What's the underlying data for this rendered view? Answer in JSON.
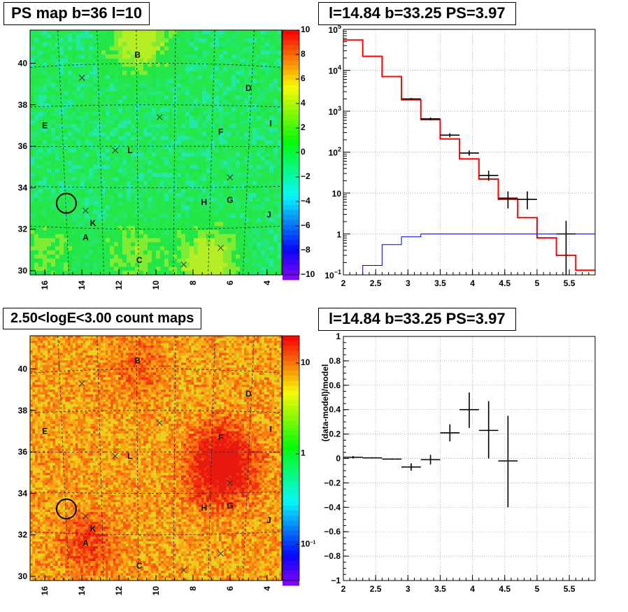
{
  "panels": {
    "ps_map": {
      "title": "PS map b=36 l=10",
      "x_ticks": [
        "16",
        "14",
        "12",
        "10",
        "8",
        "6",
        "4"
      ],
      "y_ticks": [
        "40",
        "38",
        "36",
        "34",
        "32",
        "30"
      ],
      "colorbar_ticks": [
        "10",
        "8",
        "6",
        "4",
        "2",
        "0",
        "−2",
        "−4",
        "−6",
        "−8",
        "−10"
      ],
      "source_labels": [
        "B",
        "D",
        "E",
        "F",
        "I",
        "L",
        "H",
        "G",
        "J",
        "K",
        "A",
        "C"
      ]
    },
    "spectrum": {
      "title": "l=14.84 b=33.25 PS=3.97",
      "x_ticks": [
        "2",
        "2.5",
        "3",
        "3.5",
        "4",
        "4.5",
        "5",
        "5.5"
      ],
      "y_ticks": [
        "10^5",
        "10^4",
        "10^3",
        "10^2",
        "10",
        "1",
        "10^-1"
      ]
    },
    "count_map": {
      "title": "2.50<logE<3.00 count maps",
      "x_ticks": [
        "16",
        "14",
        "12",
        "10",
        "8",
        "6",
        "4"
      ],
      "y_ticks": [
        "40",
        "38",
        "36",
        "34",
        "32",
        "30"
      ],
      "colorbar_ticks": [
        "10",
        "1",
        "10^-1"
      ],
      "source_labels": [
        "B",
        "D",
        "E",
        "F",
        "I",
        "L",
        "H",
        "G",
        "J",
        "K",
        "A",
        "C"
      ]
    },
    "residual": {
      "title": "l=14.84 b=33.25 PS=3.97",
      "ylabel": "(data-model)/model",
      "x_ticks": [
        "2",
        "2.5",
        "3",
        "3.5",
        "4",
        "4.5",
        "5",
        "5.5"
      ],
      "y_ticks": [
        "1",
        "0.8",
        "0.6",
        "0.4",
        "0.2",
        "0",
        "−0.2",
        "−0.4",
        "−0.6",
        "−0.8",
        "−1"
      ]
    }
  },
  "colors": {
    "model_line": "#ff0000",
    "background_line": "#0000cc",
    "data_points": "#000000",
    "ps_map_base": "#22e84a",
    "count_map_base": "#f26a10"
  },
  "chart_data": [
    {
      "type": "heatmap",
      "title": "PS map b=36 l=10",
      "xlim": [
        16.8,
        3.2
      ],
      "ylim": [
        29.8,
        41.6
      ],
      "zlim": [
        -10,
        10
      ],
      "sources": [
        {
          "label": "B",
          "l": 11.0,
          "b": 40.4
        },
        {
          "label": "D",
          "l": 5.0,
          "b": 38.8
        },
        {
          "label": "E",
          "l": 16.0,
          "b": 37.0
        },
        {
          "label": "F",
          "l": 6.5,
          "b": 36.7
        },
        {
          "label": "I",
          "l": 3.8,
          "b": 37.1
        },
        {
          "label": "L",
          "l": 11.4,
          "b": 35.8
        },
        {
          "label": "H",
          "l": 7.4,
          "b": 33.3
        },
        {
          "label": "G",
          "l": 6.0,
          "b": 33.4
        },
        {
          "label": "J",
          "l": 3.9,
          "b": 32.7
        },
        {
          "label": "K",
          "l": 13.4,
          "b": 32.3
        },
        {
          "label": "A",
          "l": 13.8,
          "b": 31.6
        },
        {
          "label": "C",
          "l": 10.9,
          "b": 30.5
        }
      ],
      "crosses": [
        {
          "l": 14.0,
          "b": 39.3
        },
        {
          "l": 9.8,
          "b": 37.4
        },
        {
          "l": 12.2,
          "b": 35.8
        },
        {
          "l": 6.0,
          "b": 34.5
        },
        {
          "l": 13.8,
          "b": 32.9
        },
        {
          "l": 6.5,
          "b": 31.1
        },
        {
          "l": 8.5,
          "b": 30.3
        }
      ],
      "circle": {
        "l": 14.84,
        "b": 33.25
      }
    },
    {
      "type": "line",
      "title": "l=14.84 b=33.25 PS=3.97",
      "xlim": [
        2.0,
        5.9
      ],
      "ylim": [
        0.1,
        100000
      ],
      "yscale": "log",
      "grid": true,
      "series": [
        {
          "kind": "step",
          "color": "#ff0000",
          "edges": [
            2.0,
            2.3,
            2.6,
            2.9,
            3.2,
            3.5,
            3.8,
            4.1,
            4.4,
            4.7,
            5.0,
            5.3,
            5.6,
            5.9
          ],
          "values": [
            55000,
            22000,
            7000,
            1900,
            620,
            210,
            68,
            22,
            7,
            2.5,
            0.8,
            0.3,
            0.13
          ]
        },
        {
          "kind": "step",
          "color": "#0000cc",
          "edges": [
            2.0,
            2.3,
            2.6,
            2.9,
            3.2,
            3.5,
            3.8,
            4.1,
            4.4,
            4.7,
            5.0,
            5.3,
            5.6,
            5.9
          ],
          "values": [
            0.1,
            0.17,
            0.55,
            0.85,
            1.0,
            1.0,
            1.0,
            1.0,
            1.0,
            1.0,
            1.0,
            1.0,
            1.0
          ]
        },
        {
          "kind": "points",
          "color": "#000000",
          "points": [
            {
              "x": 3.05,
              "xerr": 0.15,
              "y": 2000,
              "ylo": 1900,
              "yhi": 2100
            },
            {
              "x": 3.35,
              "xerr": 0.15,
              "y": 650,
              "ylo": 600,
              "yhi": 700
            },
            {
              "x": 3.65,
              "xerr": 0.15,
              "y": 260,
              "ylo": 230,
              "yhi": 290
            },
            {
              "x": 3.95,
              "xerr": 0.15,
              "y": 95,
              "ylo": 82,
              "yhi": 110
            },
            {
              "x": 4.25,
              "xerr": 0.15,
              "y": 27,
              "ylo": 20,
              "yhi": 35
            },
            {
              "x": 4.55,
              "xerr": 0.15,
              "y": 7.5,
              "ylo": 4.2,
              "yhi": 11
            },
            {
              "x": 4.85,
              "xerr": 0.15,
              "y": 7,
              "ylo": 4,
              "yhi": 11
            },
            {
              "x": 5.45,
              "xerr": 0.15,
              "y": 1,
              "ylo": 0.1,
              "yhi": 2.1
            }
          ]
        }
      ]
    },
    {
      "type": "heatmap",
      "title": "2.50<logE<3.00 count maps",
      "xlim": [
        16.8,
        3.2
      ],
      "ylim": [
        29.8,
        41.6
      ],
      "zscale": "log",
      "zlim": [
        0.04,
        20
      ],
      "sources": [
        {
          "label": "B",
          "l": 11.0,
          "b": 40.4
        },
        {
          "label": "D",
          "l": 5.0,
          "b": 38.8
        },
        {
          "label": "E",
          "l": 16.0,
          "b": 37.0
        },
        {
          "label": "F",
          "l": 6.5,
          "b": 36.7
        },
        {
          "label": "I",
          "l": 3.8,
          "b": 37.1
        },
        {
          "label": "L",
          "l": 11.4,
          "b": 35.8
        },
        {
          "label": "H",
          "l": 7.4,
          "b": 33.3
        },
        {
          "label": "G",
          "l": 6.0,
          "b": 33.4
        },
        {
          "label": "J",
          "l": 3.9,
          "b": 32.7
        },
        {
          "label": "K",
          "l": 13.4,
          "b": 32.3
        },
        {
          "label": "A",
          "l": 13.8,
          "b": 31.6
        },
        {
          "label": "C",
          "l": 10.9,
          "b": 30.5
        }
      ],
      "crosses": [
        {
          "l": 14.0,
          "b": 39.3
        },
        {
          "l": 9.8,
          "b": 37.4
        },
        {
          "l": 12.2,
          "b": 35.8
        },
        {
          "l": 6.0,
          "b": 34.5
        },
        {
          "l": 13.8,
          "b": 32.9
        },
        {
          "l": 6.5,
          "b": 31.1
        },
        {
          "l": 8.5,
          "b": 30.3
        }
      ],
      "circle": {
        "l": 14.84,
        "b": 33.25
      }
    },
    {
      "type": "scatter",
      "title": "l=14.84 b=33.25 PS=3.97",
      "ylabel": "(data-model)/model",
      "xlim": [
        2.0,
        5.9
      ],
      "ylim": [
        -1,
        1
      ],
      "grid": true,
      "points": [
        {
          "x": 2.15,
          "xerr": 0.15,
          "y": 0.01,
          "ylo": 0.0,
          "yhi": 0.02
        },
        {
          "x": 2.45,
          "xerr": 0.15,
          "y": 0.005,
          "ylo": 0.0,
          "yhi": 0.01
        },
        {
          "x": 2.75,
          "xerr": 0.15,
          "y": -0.005,
          "ylo": -0.01,
          "yhi": 0.0
        },
        {
          "x": 3.05,
          "xerr": 0.15,
          "y": -0.07,
          "ylo": -0.1,
          "yhi": -0.04
        },
        {
          "x": 3.35,
          "xerr": 0.15,
          "y": -0.01,
          "ylo": -0.05,
          "yhi": 0.03
        },
        {
          "x": 3.65,
          "xerr": 0.15,
          "y": 0.21,
          "ylo": 0.14,
          "yhi": 0.28
        },
        {
          "x": 3.95,
          "xerr": 0.15,
          "y": 0.4,
          "ylo": 0.25,
          "yhi": 0.54
        },
        {
          "x": 4.25,
          "xerr": 0.15,
          "y": 0.23,
          "ylo": 0.0,
          "yhi": 0.47
        },
        {
          "x": 4.55,
          "xerr": 0.15,
          "y": -0.02,
          "ylo": -0.4,
          "yhi": 0.35
        }
      ]
    }
  ]
}
